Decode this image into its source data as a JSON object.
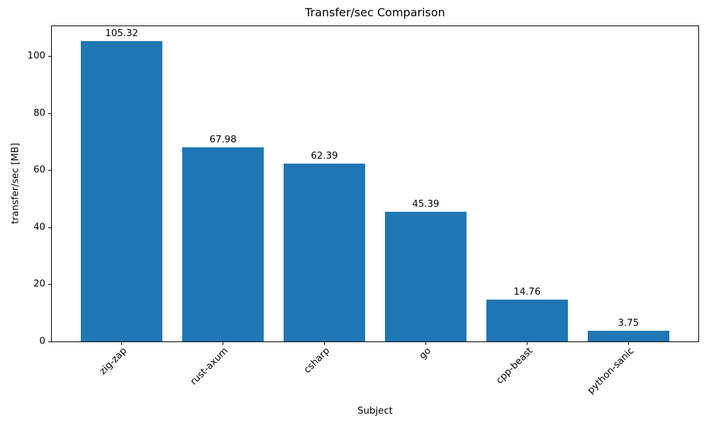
{
  "chart_data": {
    "type": "bar",
    "title": "Transfer/sec Comparison",
    "xlabel": "Subject",
    "ylabel": "transfer/sec [MB]",
    "categories": [
      "zig-zap",
      "rust-axum",
      "csharp",
      "go",
      "cpp-beast",
      "python-sanic"
    ],
    "values": [
      105.32,
      67.98,
      62.39,
      45.39,
      14.76,
      3.75
    ],
    "value_labels": [
      "105.32",
      "67.98",
      "62.39",
      "45.39",
      "14.76",
      "3.75"
    ],
    "yticks": [
      0,
      20,
      40,
      60,
      80,
      100
    ],
    "ylim": [
      0,
      110.59
    ],
    "xlim": [
      -0.69,
      5.69
    ],
    "bar_width_units": 0.8,
    "xtick_rotation_deg": 45,
    "grid": false,
    "legend": null,
    "colors": {
      "bar": "#1f77b4",
      "spine": "#000000",
      "tick": "#000000",
      "text": "#000000",
      "background": "#ffffff"
    }
  }
}
